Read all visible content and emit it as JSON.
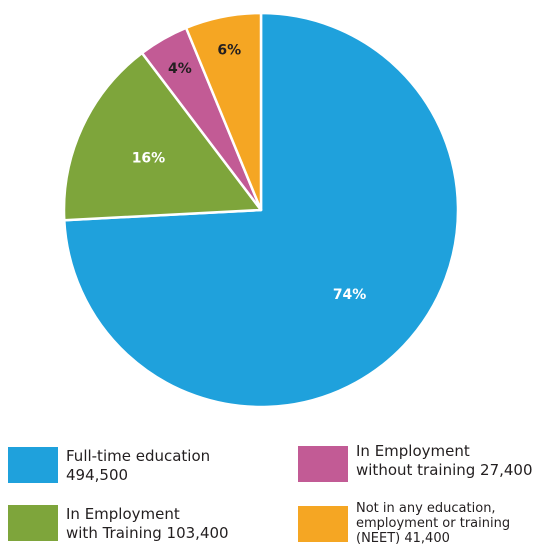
{
  "chart_data": {
    "type": "pie",
    "slices": [
      {
        "label_lines": [
          "Full-time education",
          "494,500"
        ],
        "value": 494500,
        "percent_label": "74%",
        "color": "#1fa1dc"
      },
      {
        "label_lines": [
          "In Employment",
          "with Training 103,400"
        ],
        "value": 103400,
        "percent_label": "16%",
        "color": "#7ea53b"
      },
      {
        "label_lines": [
          "In Employment",
          "without training 27,400"
        ],
        "value": 27400,
        "percent_label": "4%",
        "color": "#c25b95"
      },
      {
        "label_lines": [
          "Not in any education,",
          "employment or training",
          "(NEET) 41,400"
        ],
        "value": 41400,
        "percent_label": "6%",
        "color": "#f5a623"
      }
    ],
    "legend_position": "bottom"
  }
}
